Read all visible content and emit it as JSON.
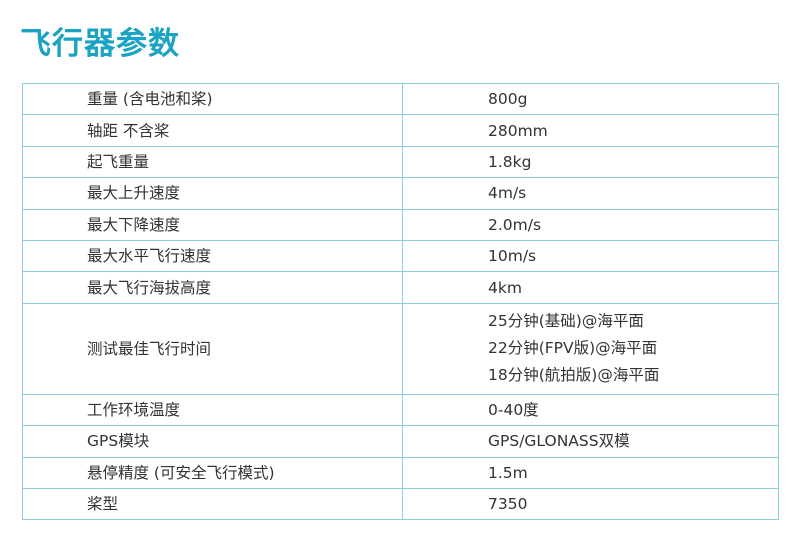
{
  "title": "飞行器参数",
  "rows": [
    {
      "label": "重量 (含电池和桨)",
      "values": [
        "800g"
      ]
    },
    {
      "label": "轴距 不含桨",
      "values": [
        "280mm"
      ]
    },
    {
      "label": "起飞重量",
      "values": [
        "1.8kg"
      ]
    },
    {
      "label": "最大上升速度",
      "values": [
        "4m/s"
      ]
    },
    {
      "label": "最大下降速度",
      "values": [
        "2.0m/s"
      ]
    },
    {
      "label": "最大水平飞行速度",
      "values": [
        "10m/s"
      ]
    },
    {
      "label": "最大飞行海拔高度",
      "values": [
        "4km"
      ]
    },
    {
      "label": "测试最佳飞行时间",
      "values": [
        "25分钟(基础)@海平面",
        "22分钟(FPV版)@海平面",
        "18分钟(航拍版)@海平面"
      ]
    },
    {
      "label": "工作环境温度",
      "values": [
        "0-40度"
      ]
    },
    {
      "label": "GPS模块",
      "values": [
        "GPS/GLONASS双模"
      ]
    },
    {
      "label": "悬停精度 (可安全飞行模式)",
      "values": [
        "1.5m"
      ]
    },
    {
      "label": "桨型",
      "values": [
        "7350"
      ]
    }
  ]
}
